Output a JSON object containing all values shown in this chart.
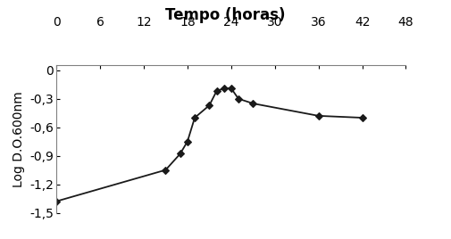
{
  "x": [
    0,
    15,
    17,
    18,
    19,
    21,
    22,
    23,
    24,
    25,
    27,
    36,
    42
  ],
  "y": [
    -1.38,
    -1.05,
    -0.88,
    -0.75,
    -0.5,
    -0.37,
    -0.22,
    -0.19,
    -0.19,
    -0.3,
    -0.35,
    -0.48,
    -0.5
  ],
  "title": "Tempo (horas)",
  "ylabel": "Log D.O.600nm",
  "xlim": [
    0,
    48
  ],
  "ylim": [
    -1.5,
    0.05
  ],
  "xticks": [
    0,
    6,
    12,
    18,
    24,
    30,
    36,
    42,
    48
  ],
  "yticks": [
    0,
    -0.3,
    -0.6,
    -0.9,
    -1.2,
    -1.5
  ],
  "ytick_labels": [
    "0",
    "-0,3",
    "-0,6",
    "-0,9",
    "-1,2",
    "-1,5"
  ],
  "xtick_labels": [
    "0",
    "6",
    "12",
    "18",
    "24",
    "30",
    "36",
    "42",
    "48"
  ],
  "line_color": "#1a1a1a",
  "marker": "D",
  "marker_size": 4,
  "marker_color": "#1a1a1a",
  "bg_color": "#ffffff",
  "title_fontsize": 12,
  "label_fontsize": 10,
  "tick_fontsize": 10
}
